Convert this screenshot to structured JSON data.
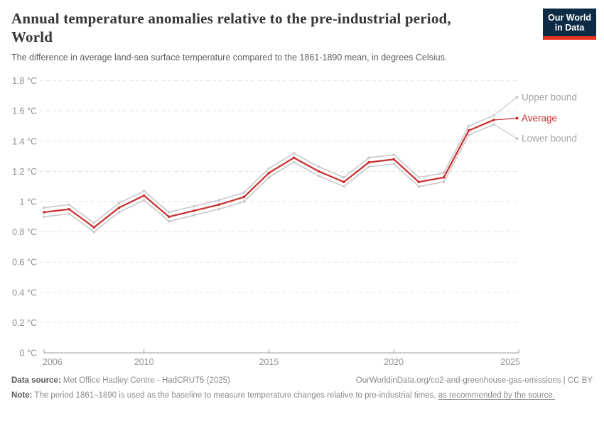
{
  "header": {
    "title_line1": "Annual temperature anomalies relative to the pre-industrial period,",
    "title_line2": "World",
    "subtitle": "The difference in average land-sea surface temperature compared to the 1861-1890 mean, in degrees Celsius.",
    "logo": {
      "line1": "Our World",
      "line2": "in Data",
      "bg_color": "#0d2b45",
      "accent_color": "#e6321f"
    }
  },
  "chart_data": {
    "type": "line",
    "title": "Annual temperature anomalies relative to the pre-industrial period, World",
    "subtitle": "The difference in average land-sea surface temperature compared to the 1861-1890 mean, in degrees Celsius.",
    "x": [
      2006,
      2007,
      2008,
      2009,
      2010,
      2011,
      2012,
      2013,
      2014,
      2015,
      2016,
      2017,
      2018,
      2019,
      2020,
      2021,
      2022,
      2023,
      2024
    ],
    "series": [
      {
        "name": "Upper bound",
        "color": "#c9c9c9",
        "label_color": "#a5a5a5",
        "values": [
          0.96,
          0.98,
          0.86,
          0.99,
          1.07,
          0.93,
          0.97,
          1.01,
          1.06,
          1.22,
          1.32,
          1.23,
          1.16,
          1.29,
          1.31,
          1.16,
          1.19,
          1.5,
          1.57
        ]
      },
      {
        "name": "Average",
        "color": "#cb2d2d",
        "label_color": "#cb2d2d",
        "values": [
          0.93,
          0.95,
          0.83,
          0.96,
          1.04,
          0.9,
          0.94,
          0.98,
          1.03,
          1.19,
          1.29,
          1.2,
          1.13,
          1.26,
          1.28,
          1.13,
          1.16,
          1.47,
          1.54
        ]
      },
      {
        "name": "Lower bound",
        "color": "#c9c9c9",
        "label_color": "#a5a5a5",
        "values": [
          0.9,
          0.92,
          0.8,
          0.93,
          1.01,
          0.87,
          0.91,
          0.95,
          1.0,
          1.16,
          1.26,
          1.17,
          1.1,
          1.23,
          1.25,
          1.1,
          1.13,
          1.44,
          1.51
        ]
      }
    ],
    "xlim": [
      2006,
      2025
    ],
    "ylim": [
      0,
      1.8
    ],
    "xticks": [
      2006,
      2010,
      2015,
      2020,
      2025
    ],
    "xtick_labels": [
      "2006",
      "2010",
      "2015",
      "2020",
      "2025"
    ],
    "yticks": [
      1.8,
      1.6,
      1.4,
      1.2,
      1.0,
      0.8,
      0.6,
      0.4,
      0.2,
      0
    ],
    "ytick_labels": [
      "1.8 °C",
      "1.6 °C",
      "1.4 °C",
      "1.2 °C",
      "1 °C",
      "0.8 °C",
      "0.6 °C",
      "0.4 °C",
      "0.2 °C",
      "0 °C"
    ],
    "grid": "horizontal-dashed",
    "legend_position": "end-of-line-labels",
    "grid_color": "#e2e2e2",
    "axis_color": "#9c9c9c",
    "tick_label_color": "#929292"
  },
  "footer": {
    "datasource_label": "Data source:",
    "datasource_value": " Met Office Hadley Centre - HadCRUT5 (2025)",
    "attribution": "OurWorldinData.org/co2-and-greenhouse-gas-emissions | CC BY",
    "note_label": "Note:",
    "note_text": " The period 1861–1890 is used as the baseline to measure temperature changes relative to pre-industrial times, ",
    "note_link": "as recommended by the source."
  }
}
